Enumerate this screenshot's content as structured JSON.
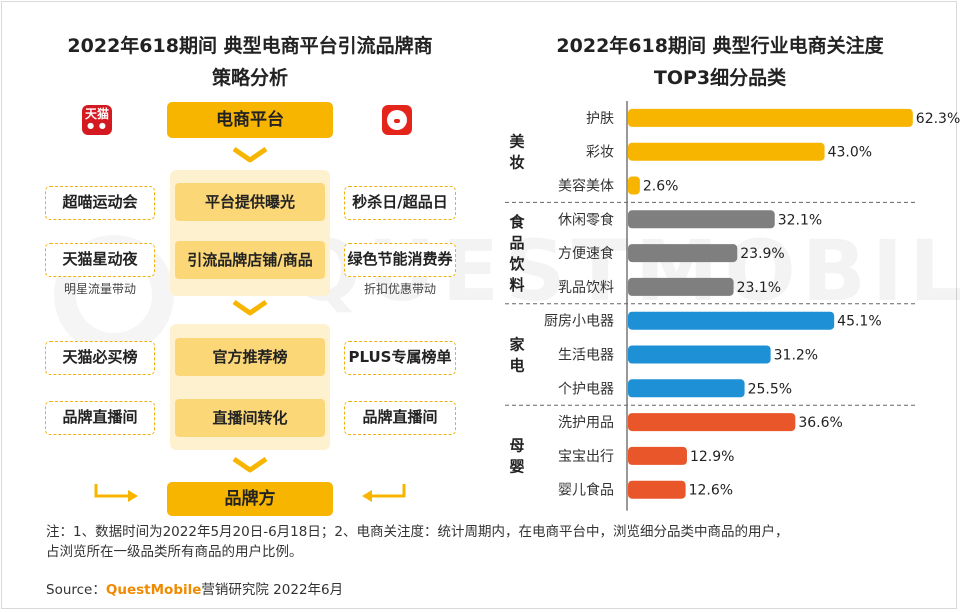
{
  "left_panel": {
    "title_line1": "2022年618期间 典型电商平台引流品牌商",
    "title_line2": "策略分析",
    "tmall_logo_text": "天猫",
    "platform_header": "电商平台",
    "brand_footer": "品牌方",
    "center_boxes": [
      "平台提供曝光",
      "引流品牌店铺/商品",
      "官方推荐榜",
      "直播间转化"
    ],
    "left_boxes": [
      "超喵运动会",
      "天猫星动夜",
      "天猫必买榜",
      "品牌直播间"
    ],
    "right_boxes": [
      "秒杀日/超品日",
      "绿色节能消费券",
      "PLUS专属榜单",
      "品牌直播间"
    ],
    "left_caption": "明星流量带动",
    "right_caption": "折扣优惠带动",
    "colors": {
      "header": "#f7b500",
      "panel": "#fdf1cf",
      "inner_box": "#fbd777",
      "dashed": "#f2b010"
    }
  },
  "chart_data": {
    "type": "bar",
    "orientation": "horizontal",
    "title": "2022年618期间 典型行业电商关注度",
    "subtitle": "TOP3细分品类",
    "value_suffix": "%",
    "xlim": [
      0,
      70
    ],
    "groups": [
      {
        "name": "美妆",
        "color": "#f7b500",
        "categories": [
          "护肤",
          "彩妆",
          "美容美体"
        ],
        "values": [
          62.3,
          43.0,
          2.6
        ]
      },
      {
        "name": "食品饮料",
        "color": "#7f7f7f",
        "categories": [
          "休闲零食",
          "方便速食",
          "乳品饮料"
        ],
        "values": [
          32.1,
          23.9,
          23.1
        ]
      },
      {
        "name": "家电",
        "color": "#1e90d6",
        "categories": [
          "厨房小电器",
          "生活电器",
          "个护电器"
        ],
        "values": [
          45.1,
          31.2,
          25.5
        ]
      },
      {
        "name": "母婴",
        "color": "#e8562a",
        "categories": [
          "洗护用品",
          "宝宝出行",
          "婴儿食品"
        ],
        "values": [
          36.6,
          12.9,
          12.6
        ]
      }
    ]
  },
  "watermark": "QUESTMOBILE",
  "footnote": {
    "line1": "注：1、数据时间为2022年5月20日-6月18日；2、电商关注度：统计周期内，在电商平台中，浏览细分品类中商品的用户，",
    "line2": "占浏览所在一级品类所有商品的用户比例。"
  },
  "source": {
    "prefix": "Source：",
    "brand": "QuestMobile",
    "suffix": "营销研究院 2022年6月"
  }
}
